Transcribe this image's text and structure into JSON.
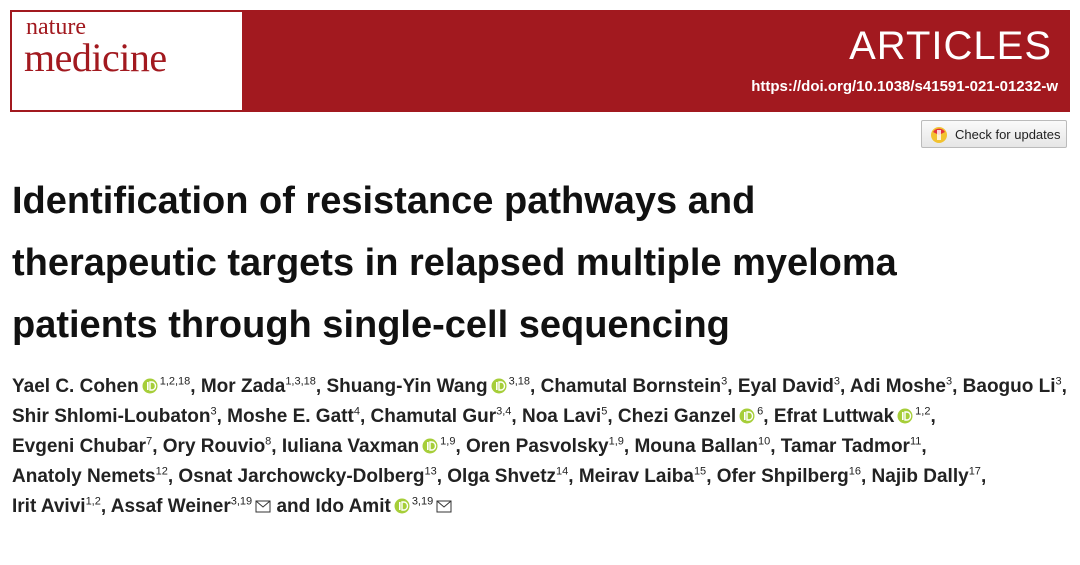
{
  "header": {
    "journal_top": "nature",
    "journal_bottom": "medicine",
    "article_type": "ARTICLES",
    "doi": "https://doi.org/10.1038/s41591-021-01232-w",
    "check_button": "Check for updates"
  },
  "title": [
    "Identification of resistance pathways and",
    "therapeutic targets in relapsed multiple myeloma",
    "patients through single-cell sequencing"
  ],
  "authors": [
    {
      "name": "Yael C. Cohen",
      "orcid": true,
      "affiliations": "1,2,18",
      "sep": ","
    },
    {
      "name": "Mor Zada",
      "affiliations": "1,3,18",
      "sep": ","
    },
    {
      "name": "Shuang-Yin Wang",
      "orcid": true,
      "affiliations": "3,18",
      "sep": ","
    },
    {
      "name": "Chamutal Bornstein",
      "affiliations": "3",
      "sep": ","
    },
    {
      "name": "Eyal David",
      "affiliations": "3",
      "sep": ","
    },
    {
      "name": "Adi Moshe",
      "affiliations": "3",
      "sep": ","
    },
    {
      "name": "Baoguo Li",
      "affiliations": "3",
      "sep": ","
    },
    {
      "name": "Shir Shlomi-Loubaton",
      "affiliations": "3",
      "sep": ","
    },
    {
      "name": "Moshe E. Gatt",
      "affiliations": "4",
      "sep": ","
    },
    {
      "name": "Chamutal Gur",
      "affiliations": "3,4",
      "sep": ","
    },
    {
      "name": "Noa Lavi",
      "affiliations": "5",
      "sep": ","
    },
    {
      "name": "Chezi Ganzel",
      "orcid": true,
      "affiliations": "6",
      "sep": ","
    },
    {
      "name": "Efrat Luttwak",
      "orcid": true,
      "affiliations": "1,2",
      "sep": ","
    },
    {
      "name": "Evgeni Chubar",
      "affiliations": "7",
      "sep": ","
    },
    {
      "name": "Ory Rouvio",
      "affiliations": "8",
      "sep": ","
    },
    {
      "name": "Iuliana Vaxman",
      "orcid": true,
      "affiliations": "1,9",
      "sep": ","
    },
    {
      "name": "Oren Pasvolsky",
      "affiliations": "1,9",
      "sep": ","
    },
    {
      "name": "Mouna Ballan",
      "affiliations": "10",
      "sep": ","
    },
    {
      "name": "Tamar Tadmor",
      "affiliations": "11",
      "sep": ","
    },
    {
      "name": "Anatoly Nemets",
      "affiliations": "12",
      "sep": ","
    },
    {
      "name": "Osnat Jarchowcky-Dolberg",
      "affiliations": "13",
      "sep": ","
    },
    {
      "name": "Olga Shvetz",
      "affiliations": "14",
      "sep": ","
    },
    {
      "name": "Meirav Laiba",
      "affiliations": "15",
      "sep": ","
    },
    {
      "name": "Ofer Shpilberg",
      "affiliations": "16",
      "sep": ","
    },
    {
      "name": "Najib Dally",
      "affiliations": "17",
      "sep": ","
    },
    {
      "name": "Irit Avivi",
      "affiliations": "1,2",
      "sep": ","
    },
    {
      "name": "Assaf Weiner",
      "affiliations": "3,19",
      "corresponding": true,
      "sep": "and"
    },
    {
      "name": "Ido Amit",
      "orcid": true,
      "affiliations": "3,19",
      "corresponding": true
    }
  ]
}
